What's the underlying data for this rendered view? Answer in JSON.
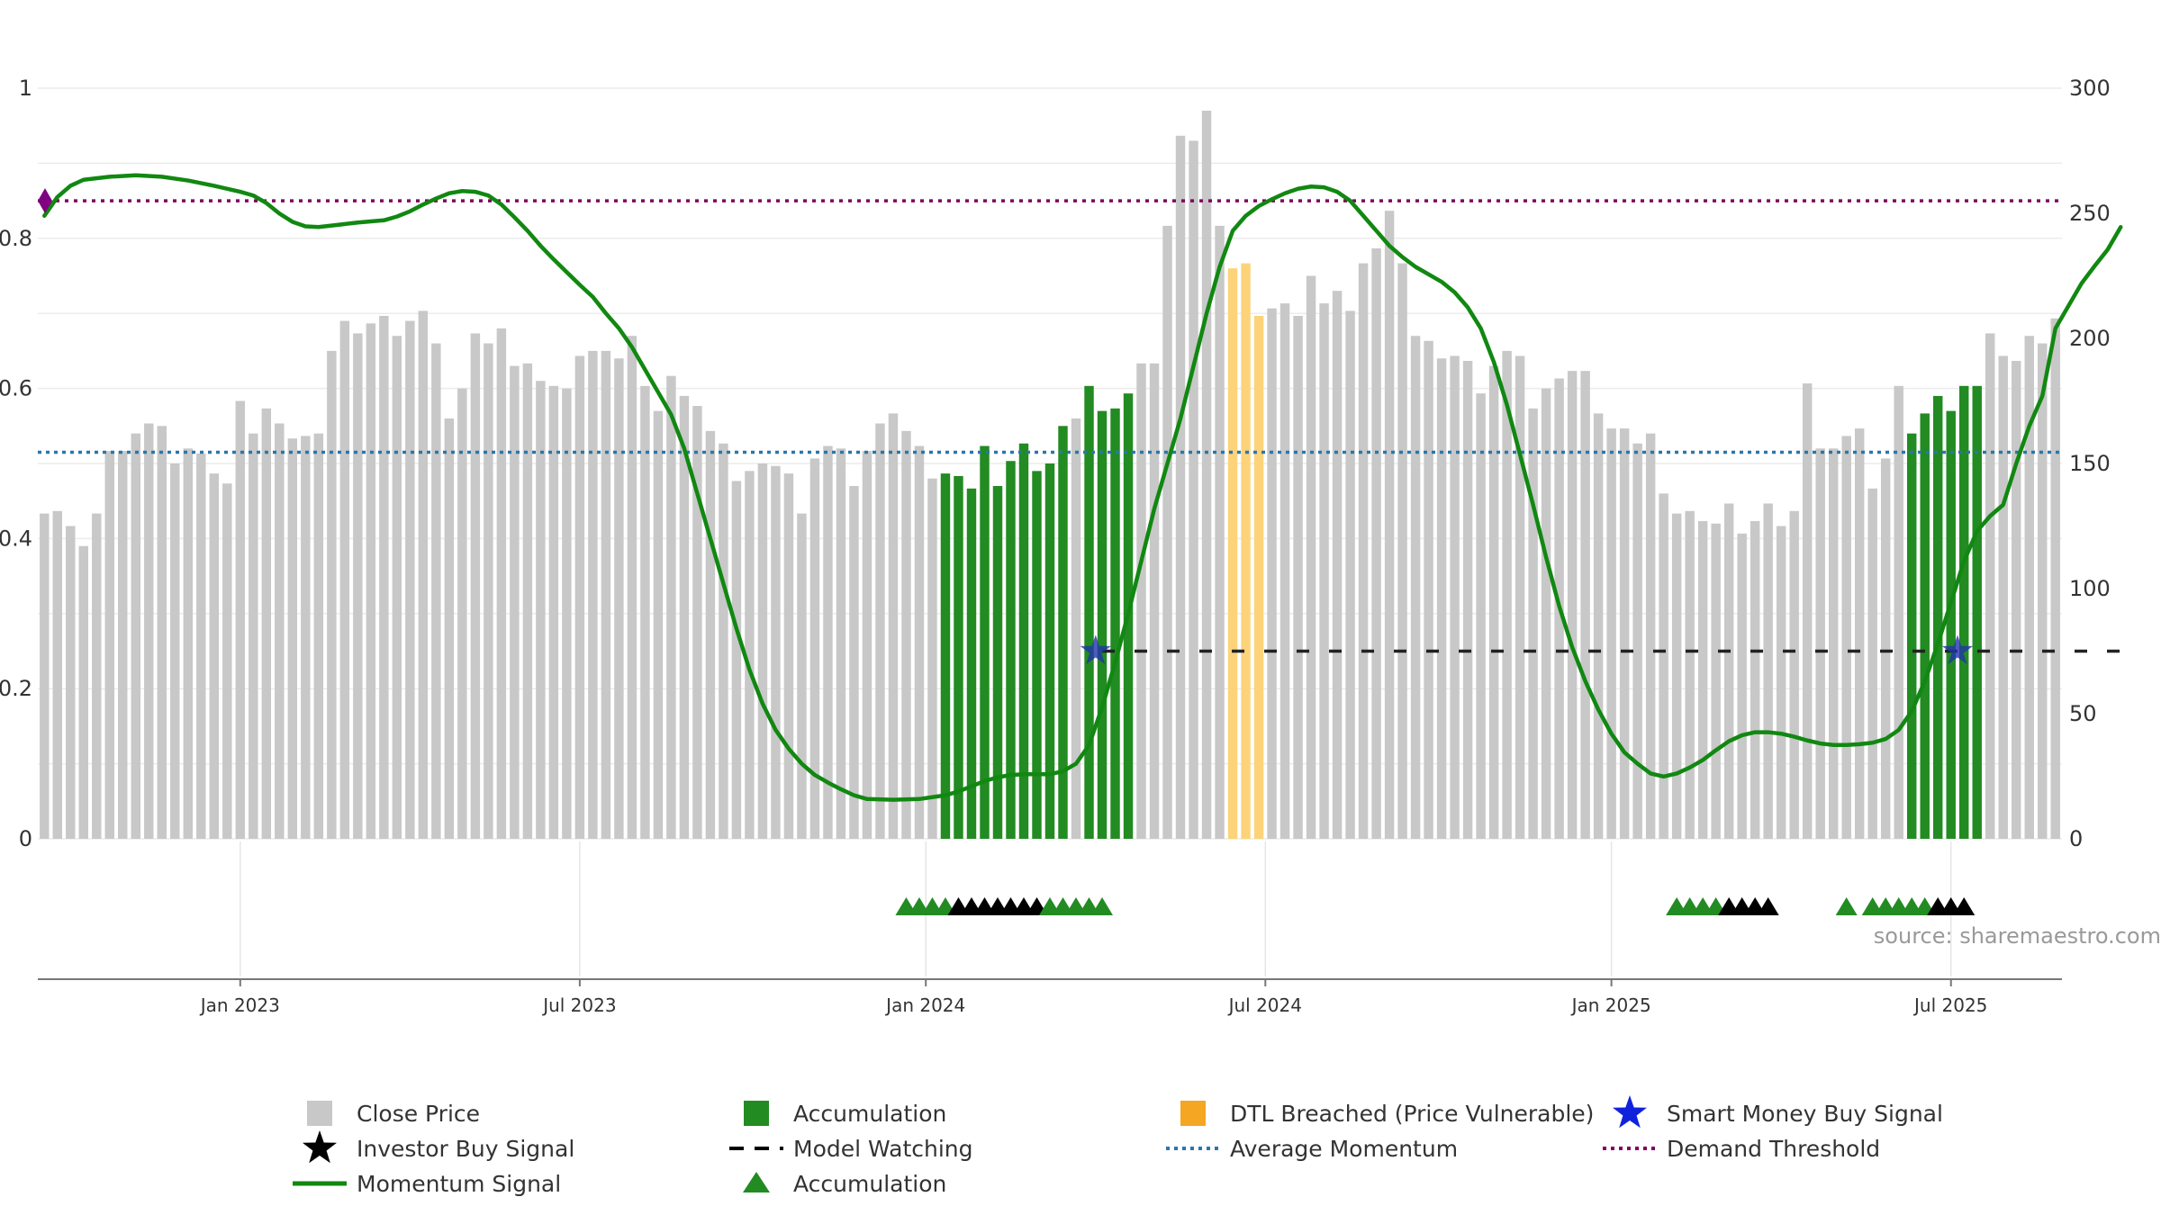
{
  "chart_data": {
    "type": "bar",
    "source_note": "source: sharemaestro.com",
    "colors": {
      "close": "#c8c8c8",
      "accumulation": "#228b22",
      "dtl": "#fdd37a",
      "momentum": "#118811",
      "avg_momentum": "#2a77a8",
      "demand": "#800060",
      "demand_marker": "#800080",
      "watching": "#222222",
      "smart_money": "#2233aa",
      "black_tri": "#000000"
    },
    "left_axis": {
      "ticks": [
        "0",
        "0.2",
        "0.4",
        "0.6",
        "0.8",
        "1"
      ],
      "ylim": [
        0,
        1.0
      ]
    },
    "right_axis": {
      "ticks": [
        "0",
        "50",
        "100",
        "150",
        "200",
        "250",
        "300"
      ],
      "ylim": [
        0,
        300
      ]
    },
    "x_axis": {
      "ticks": [
        {
          "label": "Jan 2023",
          "x": 15
        },
        {
          "label": "Jul 2023",
          "x": 41
        },
        {
          "label": "Jan 2024",
          "x": 67.5
        },
        {
          "label": "Jul 2024",
          "x": 93.5
        },
        {
          "label": "Jan 2025",
          "x": 120
        },
        {
          "label": "Jul 2025",
          "x": 146
        }
      ]
    },
    "close_price": [
      130,
      131,
      125,
      117,
      130,
      155,
      155,
      162,
      166,
      165,
      150,
      156,
      154,
      146,
      142,
      175,
      162,
      172,
      166,
      160,
      161,
      162,
      195,
      207,
      202,
      206,
      209,
      201,
      207,
      211,
      198,
      168,
      180,
      202,
      198,
      204,
      189,
      190,
      183,
      181,
      180,
      193,
      195,
      195,
      192,
      201,
      181,
      171,
      185,
      177,
      173,
      163,
      158,
      143,
      147,
      150,
      149,
      146,
      130,
      152,
      157,
      156,
      141,
      155,
      166,
      170,
      163,
      157,
      144,
      146,
      145,
      140,
      157,
      141,
      151,
      158,
      147,
      150,
      165,
      168,
      181,
      171,
      172,
      178,
      190,
      190,
      245,
      281,
      279,
      291,
      245,
      228,
      230,
      209,
      212,
      214,
      209,
      225,
      214,
      219,
      211,
      230,
      236,
      251,
      230,
      201,
      199,
      192,
      193,
      191,
      178,
      189,
      195,
      193,
      172,
      180,
      184,
      187,
      187,
      170,
      164,
      164,
      158,
      162,
      138,
      130,
      131,
      127,
      126,
      134,
      122,
      127,
      134,
      125,
      131,
      182,
      156,
      156,
      161,
      164,
      140,
      152,
      181,
      162,
      170,
      177,
      171,
      181,
      181,
      202,
      193,
      191,
      201,
      198,
      208
    ],
    "close_kind": "g.............................................................................................................................................................................................................................",
    "kinds": "gggggggggggggggggggggggggggggggggggggggggggggggggggggggggggggggggggggaaaaaaaaaagaaaagggggggdddgggggggggggggggggggggggggggggggggggggggggggggggggaaaaaagggggggaggaaaaaaggggggggggggg",
    "momentum": [
      [
        0,
        0.83
      ],
      [
        1,
        0.855
      ],
      [
        2,
        0.87
      ],
      [
        3,
        0.878
      ],
      [
        5,
        0.882
      ],
      [
        7,
        0.884
      ],
      [
        9,
        0.882
      ],
      [
        11,
        0.877
      ],
      [
        13,
        0.87
      ],
      [
        15,
        0.862
      ],
      [
        16,
        0.857
      ],
      [
        17,
        0.847
      ],
      [
        18,
        0.833
      ],
      [
        19,
        0.822
      ],
      [
        20,
        0.816
      ],
      [
        21,
        0.815
      ],
      [
        22,
        0.817
      ],
      [
        24,
        0.821
      ],
      [
        26,
        0.824
      ],
      [
        27,
        0.829
      ],
      [
        28,
        0.836
      ],
      [
        29,
        0.845
      ],
      [
        30,
        0.853
      ],
      [
        31,
        0.86
      ],
      [
        32,
        0.863
      ],
      [
        33,
        0.862
      ],
      [
        34,
        0.857
      ],
      [
        35,
        0.845
      ],
      [
        36,
        0.828
      ],
      [
        37,
        0.81
      ],
      [
        38,
        0.79
      ],
      [
        39,
        0.772
      ],
      [
        40,
        0.755
      ],
      [
        41,
        0.738
      ],
      [
        42,
        0.722
      ],
      [
        43,
        0.7
      ],
      [
        44,
        0.68
      ],
      [
        45,
        0.655
      ],
      [
        46,
        0.625
      ],
      [
        47,
        0.595
      ],
      [
        48,
        0.565
      ],
      [
        49,
        0.52
      ],
      [
        50,
        0.46
      ],
      [
        51,
        0.4
      ],
      [
        52,
        0.34
      ],
      [
        53,
        0.28
      ],
      [
        54,
        0.225
      ],
      [
        55,
        0.18
      ],
      [
        56,
        0.145
      ],
      [
        57,
        0.12
      ],
      [
        58,
        0.1
      ],
      [
        59,
        0.085
      ],
      [
        60,
        0.075
      ],
      [
        61,
        0.066
      ],
      [
        62,
        0.058
      ],
      [
        63,
        0.053
      ],
      [
        65,
        0.052
      ],
      [
        67,
        0.053
      ],
      [
        69,
        0.058
      ],
      [
        70,
        0.063
      ],
      [
        71,
        0.07
      ],
      [
        72,
        0.077
      ],
      [
        73,
        0.082
      ],
      [
        74,
        0.085
      ],
      [
        75,
        0.086
      ],
      [
        76,
        0.086
      ],
      [
        77,
        0.086
      ],
      [
        78,
        0.09
      ],
      [
        79,
        0.1
      ],
      [
        80,
        0.125
      ],
      [
        81,
        0.175
      ],
      [
        82,
        0.235
      ],
      [
        83,
        0.3
      ],
      [
        84,
        0.37
      ],
      [
        85,
        0.44
      ],
      [
        86,
        0.5
      ],
      [
        87,
        0.56
      ],
      [
        88,
        0.63
      ],
      [
        89,
        0.7
      ],
      [
        90,
        0.762
      ],
      [
        91,
        0.81
      ],
      [
        92,
        0.83
      ],
      [
        93,
        0.843
      ],
      [
        94,
        0.852
      ],
      [
        95,
        0.86
      ],
      [
        96,
        0.866
      ],
      [
        97,
        0.869
      ],
      [
        98,
        0.868
      ],
      [
        99,
        0.862
      ],
      [
        100,
        0.85
      ],
      [
        101,
        0.83
      ],
      [
        102,
        0.81
      ],
      [
        103,
        0.79
      ],
      [
        104,
        0.775
      ],
      [
        105,
        0.762
      ],
      [
        106,
        0.752
      ],
      [
        107,
        0.742
      ],
      [
        108,
        0.728
      ],
      [
        109,
        0.708
      ],
      [
        110,
        0.68
      ],
      [
        111,
        0.635
      ],
      [
        112,
        0.578
      ],
      [
        113,
        0.512
      ],
      [
        114,
        0.445
      ],
      [
        115,
        0.375
      ],
      [
        116,
        0.31
      ],
      [
        117,
        0.255
      ],
      [
        118,
        0.21
      ],
      [
        119,
        0.172
      ],
      [
        120,
        0.14
      ],
      [
        121,
        0.115
      ],
      [
        122,
        0.1
      ],
      [
        123,
        0.087
      ],
      [
        124,
        0.083
      ],
      [
        125,
        0.087
      ],
      [
        126,
        0.095
      ],
      [
        127,
        0.105
      ],
      [
        128,
        0.118
      ],
      [
        129,
        0.13
      ],
      [
        130,
        0.138
      ],
      [
        131,
        0.142
      ],
      [
        132,
        0.142
      ],
      [
        133,
        0.14
      ],
      [
        134,
        0.136
      ],
      [
        135,
        0.131
      ],
      [
        136,
        0.127
      ],
      [
        137,
        0.125
      ],
      [
        138,
        0.125
      ],
      [
        139,
        0.126
      ],
      [
        140,
        0.128
      ],
      [
        141,
        0.133
      ],
      [
        142,
        0.145
      ],
      [
        143,
        0.17
      ],
      [
        144,
        0.21
      ],
      [
        145,
        0.26
      ],
      [
        146,
        0.315
      ],
      [
        147,
        0.37
      ],
      [
        148,
        0.41
      ],
      [
        149,
        0.43
      ],
      [
        150,
        0.445
      ],
      [
        151,
        0.5
      ],
      [
        152,
        0.55
      ],
      [
        153,
        0.59
      ],
      [
        154,
        0.68
      ],
      [
        155,
        0.71
      ],
      [
        156,
        0.74
      ],
      [
        157,
        0.763
      ],
      [
        158,
        0.785
      ],
      [
        159,
        0.815
      ]
    ],
    "avg_momentum": 0.515,
    "demand_threshold": 0.85,
    "model_watching": {
      "value": 0.25,
      "x_start": 81,
      "x_end": 159
    },
    "smart_money_signals": [
      {
        "x": 80.5,
        "y": 0.25
      },
      {
        "x": 146.5,
        "y": 0.25
      }
    ],
    "triangles": [
      {
        "x": 66,
        "c": "g"
      },
      {
        "x": 67,
        "c": "g"
      },
      {
        "x": 68,
        "c": "g"
      },
      {
        "x": 69,
        "c": "g"
      },
      {
        "x": 70,
        "c": "k"
      },
      {
        "x": 71,
        "c": "k"
      },
      {
        "x": 72,
        "c": "k"
      },
      {
        "x": 73,
        "c": "k"
      },
      {
        "x": 74,
        "c": "k"
      },
      {
        "x": 75,
        "c": "k"
      },
      {
        "x": 76,
        "c": "k"
      },
      {
        "x": 77,
        "c": "g"
      },
      {
        "x": 78,
        "c": "g"
      },
      {
        "x": 79,
        "c": "g"
      },
      {
        "x": 80,
        "c": "g"
      },
      {
        "x": 81,
        "c": "g"
      },
      {
        "x": 125,
        "c": "g"
      },
      {
        "x": 126,
        "c": "g"
      },
      {
        "x": 127,
        "c": "g"
      },
      {
        "x": 128,
        "c": "g"
      },
      {
        "x": 129,
        "c": "k"
      },
      {
        "x": 130,
        "c": "k"
      },
      {
        "x": 131,
        "c": "k"
      },
      {
        "x": 132,
        "c": "k"
      },
      {
        "x": 138,
        "c": "g"
      },
      {
        "x": 140,
        "c": "g"
      },
      {
        "x": 141,
        "c": "g"
      },
      {
        "x": 142,
        "c": "g"
      },
      {
        "x": 143,
        "c": "g"
      },
      {
        "x": 144,
        "c": "g"
      },
      {
        "x": 145,
        "c": "k"
      },
      {
        "x": 146,
        "c": "k"
      },
      {
        "x": 147,
        "c": "k"
      }
    ],
    "legend": [
      {
        "label": "Close Price",
        "symbol": "square-gray"
      },
      {
        "label": "Investor Buy Signal",
        "symbol": "star-black"
      },
      {
        "label": "Momentum Signal",
        "symbol": "line-green"
      },
      {
        "label": "Accumulation",
        "symbol": "square-green"
      },
      {
        "label": "Model Watching",
        "symbol": "dash-black"
      },
      {
        "label": "Accumulation",
        "symbol": "triangle-green"
      },
      {
        "label": "DTL Breached (Price Vulnerable)",
        "symbol": "square-orange"
      },
      {
        "label": "Average Momentum",
        "symbol": "dot-blue"
      },
      {
        "label": "Smart Money Buy Signal",
        "symbol": "star-blue"
      },
      {
        "label": "Demand Threshold",
        "symbol": "dot-purple"
      }
    ]
  }
}
